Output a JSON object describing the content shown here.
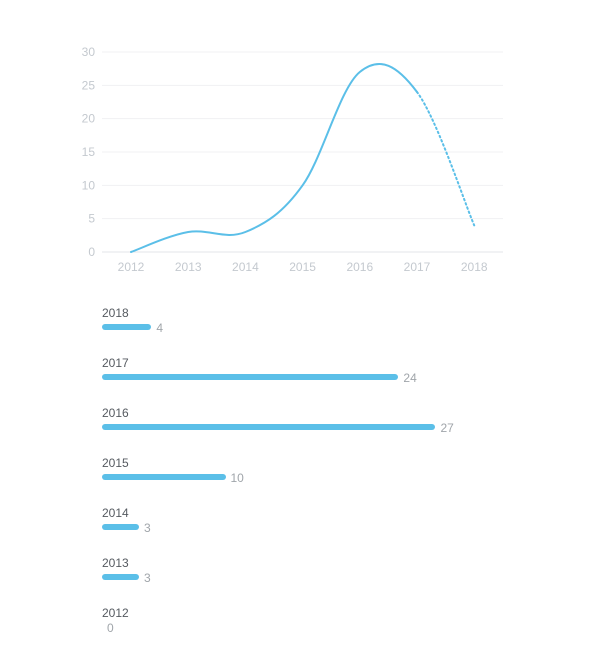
{
  "colors": {
    "accent": "#5bbfe8",
    "grid": "#f0f1f3",
    "axis": "#e3e5e8",
    "tick": "#c4c9cf",
    "year_label": "#555a60",
    "value_label": "#a0a5aa"
  },
  "chart_data": [
    {
      "type": "line",
      "x": [
        "2012",
        "2013",
        "2014",
        "2015",
        "2016",
        "2017",
        "2018"
      ],
      "y": [
        0,
        3,
        3,
        10,
        27,
        24,
        4
      ],
      "ylim": [
        0,
        30
      ],
      "yticks": [
        0,
        5,
        10,
        15,
        20,
        25,
        30
      ],
      "projected_segment": [
        "2017",
        "2018"
      ],
      "grid": true,
      "title": "",
      "xlabel": "",
      "ylabel": ""
    },
    {
      "type": "bar",
      "orientation": "horizontal",
      "categories": [
        "2018",
        "2017",
        "2016",
        "2015",
        "2014",
        "2013",
        "2012"
      ],
      "values": [
        4,
        24,
        27,
        10,
        3,
        3,
        0
      ],
      "title": "",
      "xlabel": "",
      "ylabel": ""
    }
  ]
}
